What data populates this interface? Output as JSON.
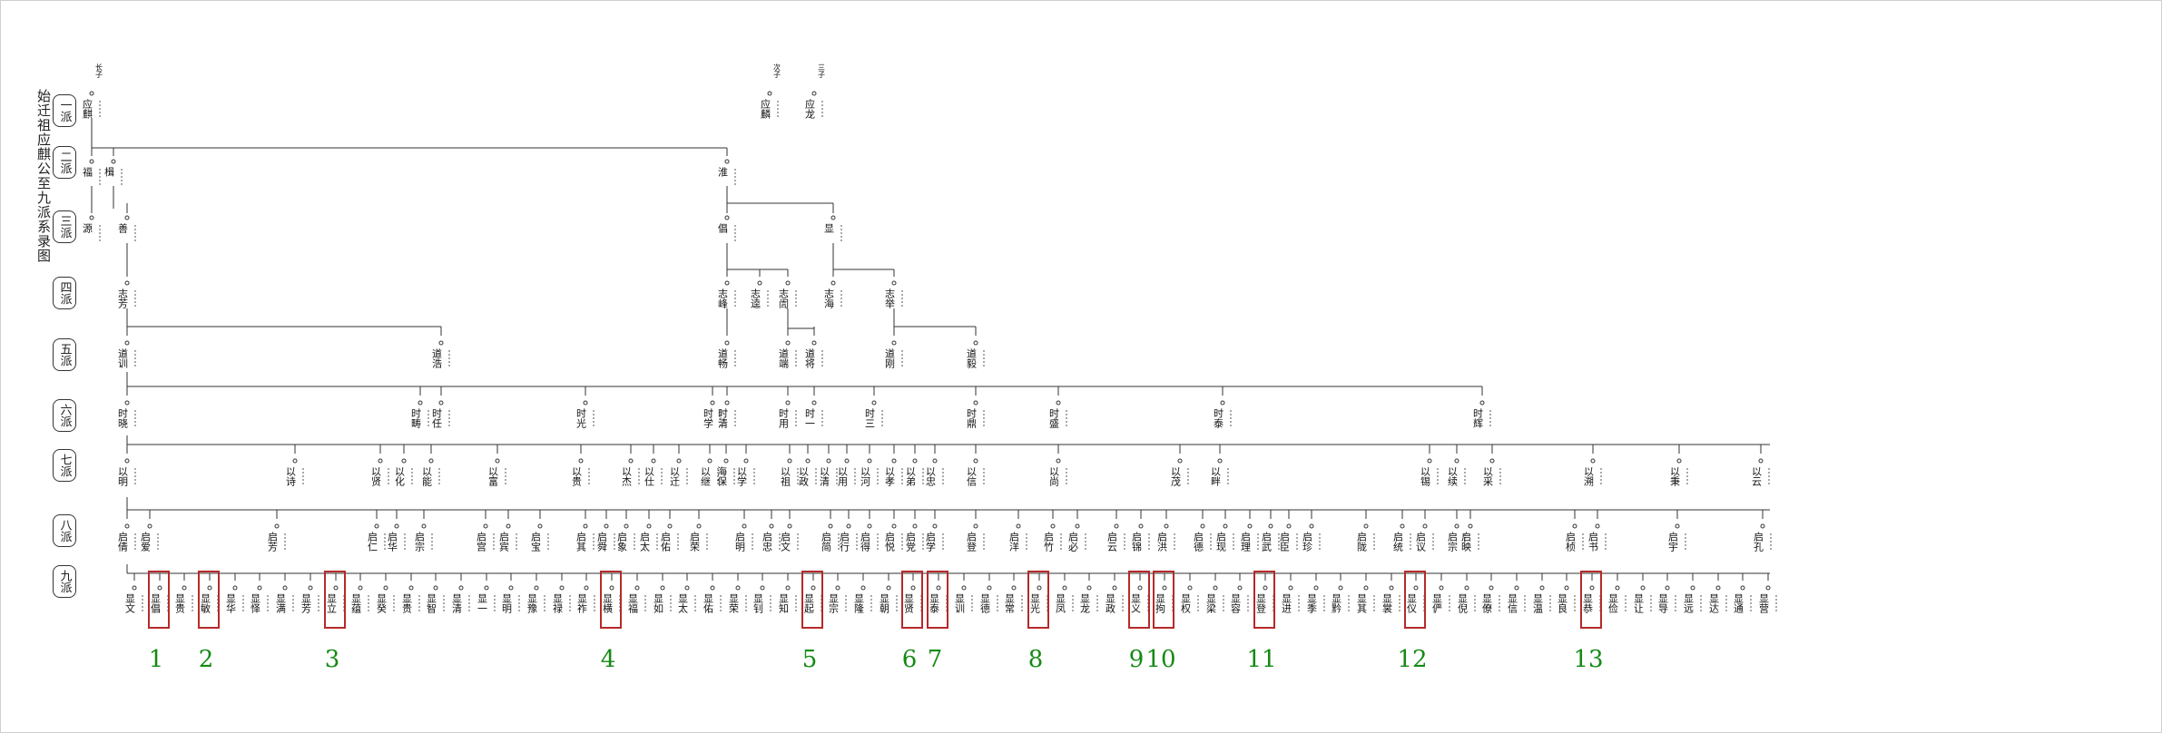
{
  "title": "始迁祖应麒公至九派系录图",
  "generations": [
    "一派",
    "二派",
    "三派",
    "四派",
    "五派",
    "六派",
    "七派",
    "八派",
    "九派"
  ],
  "founders": [
    {
      "order": "长子",
      "name": "应麒"
    },
    {
      "order": "次子",
      "name": "应麟"
    },
    {
      "order": "三子",
      "name": "应龙"
    }
  ],
  "gen2": [
    "福",
    "楫",
    "淮"
  ],
  "gen3": [
    "源",
    "善",
    "倡",
    "显"
  ],
  "gen4": [
    "志芳",
    "志峰",
    "志逵",
    "志訚",
    "志海",
    "志举"
  ],
  "gen5": [
    "道训",
    "道浩",
    "道畅",
    "道端",
    "道将",
    "道刚",
    "道毅"
  ],
  "gen6": [
    "时晓",
    "时畴",
    "时任",
    "时光",
    "时学",
    "时清",
    "时用",
    "时一",
    "时三",
    "时鼎",
    "时盛",
    "时泰",
    "时辉"
  ],
  "gen7": [
    "以明",
    "以诗",
    "以贤",
    "以化",
    "以能",
    "以富",
    "以贵",
    "以杰",
    "以仕",
    "以迁",
    "以继",
    "海保",
    "以学",
    "以祖",
    "以政",
    "以清",
    "以用",
    "以河",
    "以孝",
    "以弟",
    "以忠",
    "以信",
    "以尚",
    "以茂",
    "以畔",
    "以锡",
    "以续",
    "以采",
    "以溯",
    "以秉",
    "以云"
  ],
  "gen8": [
    "启倩",
    "启爱",
    "启芳",
    "启仁",
    "启华",
    "启宗",
    "启宫",
    "启宾",
    "启宝",
    "启其",
    "启舜",
    "启象",
    "启太",
    "启佑",
    "启荣",
    "启明",
    "启忠",
    "启文",
    "启简",
    "启行",
    "启得",
    "启悦",
    "启党",
    "启学",
    "启登",
    "启洋",
    "启竹",
    "启必",
    "启云",
    "启锦",
    "启洪",
    "启德",
    "启现",
    "启理",
    "启武",
    "启臣",
    "启珍",
    "启陇",
    "启统",
    "启议",
    "启宗",
    "启映",
    "启桢",
    "启书",
    "启宇",
    "启孔"
  ],
  "gen9": [
    "显文",
    "显倡",
    "显贵",
    "显敏",
    "显华",
    "显怿",
    "显满",
    "显芳",
    "显立",
    "显蕴",
    "显癸",
    "显贵",
    "显智",
    "显清",
    "显一",
    "显明",
    "显豫",
    "显禄",
    "显祚",
    "显横",
    "显福",
    "显如",
    "显太",
    "显佑",
    "显荣",
    "显钊",
    "显知",
    "显起",
    "显宗",
    "显隆",
    "显朝",
    "显贤",
    "显泰",
    "显训",
    "显德",
    "显常",
    "显光",
    "显凤",
    "显龙",
    "显政",
    "显义",
    "显拘",
    "显权",
    "显梁",
    "显容",
    "显登",
    "显进",
    "显季",
    "显黔",
    "显其",
    "显裳",
    "显仪",
    "显俨",
    "显倪",
    "显僚",
    "显信",
    "显温",
    "显良",
    "显恭",
    "显俭",
    "显让",
    "显导",
    "显远",
    "显达",
    "显通",
    "显营"
  ],
  "markers": [
    "1",
    "2",
    "3",
    "4",
    "5",
    "6",
    "7",
    "8",
    "9",
    "10",
    "11",
    "12",
    "13"
  ],
  "colors": {
    "marker": "#148a14",
    "box": "#b52a2a",
    "line": "#333333"
  }
}
